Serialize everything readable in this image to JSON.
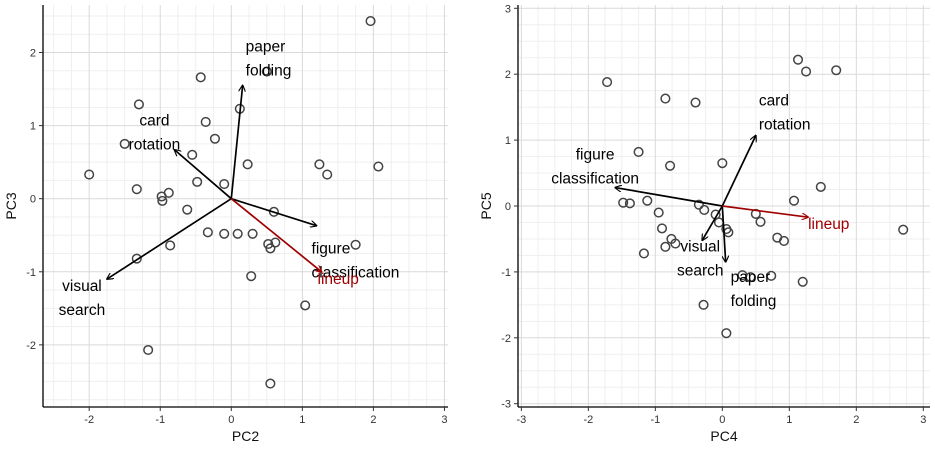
{
  "colors": {
    "background": "#ffffff",
    "grid_major": "#d9d9d9",
    "grid_minor": "#efefef",
    "point": "#444444",
    "arrow": "#000000",
    "highlight": "#a00000"
  },
  "chart_data": [
    {
      "type": "scatter",
      "subtype": "biplot",
      "xlabel": "PC2",
      "ylabel": "PC3",
      "xlim": [
        -2.65,
        3.05
      ],
      "ylim": [
        -2.85,
        2.65
      ],
      "xticks": [
        "-2",
        "-1",
        "0",
        "1",
        "2",
        "3"
      ],
      "yticks": [
        "-2",
        "-1",
        "0",
        "1",
        "2"
      ],
      "grid": true,
      "points": [
        [
          1.96,
          2.43
        ],
        [
          -0.43,
          1.66
        ],
        [
          0.5,
          1.74
        ],
        [
          -1.3,
          1.29
        ],
        [
          0.12,
          1.23
        ],
        [
          -0.36,
          1.05
        ],
        [
          -1.5,
          0.75
        ],
        [
          -0.23,
          0.82
        ],
        [
          -0.55,
          0.6
        ],
        [
          0.23,
          0.47
        ],
        [
          1.24,
          0.47
        ],
        [
          2.07,
          0.44
        ],
        [
          1.35,
          0.33
        ],
        [
          -2.0,
          0.33
        ],
        [
          -0.1,
          0.2
        ],
        [
          -0.48,
          0.23
        ],
        [
          -1.33,
          0.13
        ],
        [
          -0.88,
          0.08
        ],
        [
          -0.98,
          0.03
        ],
        [
          -0.97,
          -0.03
        ],
        [
          -0.62,
          -0.15
        ],
        [
          0.6,
          -0.18
        ],
        [
          -0.33,
          -0.46
        ],
        [
          -0.1,
          -0.48
        ],
        [
          0.09,
          -0.48
        ],
        [
          0.3,
          -0.48
        ],
        [
          0.52,
          -0.62
        ],
        [
          0.55,
          -0.68
        ],
        [
          0.62,
          -0.6
        ],
        [
          1.75,
          -0.63
        ],
        [
          -0.86,
          -0.64
        ],
        [
          -1.33,
          -0.82
        ],
        [
          0.28,
          -1.06
        ],
        [
          1.04,
          -1.46
        ],
        [
          -1.17,
          -2.07
        ],
        [
          0.55,
          -2.53
        ]
      ],
      "vectors": [
        {
          "label": "paper\nfolding",
          "x": 0.16,
          "y": 1.55,
          "highlight": false
        },
        {
          "label": "card\nrotation",
          "x": -0.8,
          "y": 0.67,
          "highlight": false
        },
        {
          "label": "figure\nclassification",
          "x": 1.2,
          "y": -0.37,
          "highlight": false
        },
        {
          "label": "visual\nsearch",
          "x": -1.75,
          "y": -1.1,
          "highlight": false
        },
        {
          "label": "lineup",
          "x": 1.27,
          "y": -1.0,
          "highlight": true
        }
      ]
    },
    {
      "type": "scatter",
      "subtype": "biplot",
      "xlabel": "PC4",
      "ylabel": "PC5",
      "xlim": [
        -3.05,
        3.1
      ],
      "ylim": [
        -3.05,
        3.05
      ],
      "xticks": [
        "-3",
        "-2",
        "-1",
        "0",
        "1",
        "2",
        "3"
      ],
      "yticks": [
        "-3",
        "-2",
        "-1",
        "0",
        "1",
        "2",
        "3"
      ],
      "grid": true,
      "points": [
        [
          1.13,
          2.22
        ],
        [
          1.25,
          2.04
        ],
        [
          1.7,
          2.06
        ],
        [
          -1.72,
          1.88
        ],
        [
          -0.85,
          1.63
        ],
        [
          -0.4,
          1.57
        ],
        [
          -1.25,
          0.82
        ],
        [
          -0.78,
          0.61
        ],
        [
          0.0,
          0.65
        ],
        [
          1.47,
          0.29
        ],
        [
          1.07,
          0.08
        ],
        [
          -1.48,
          0.05
        ],
        [
          -1.38,
          0.04
        ],
        [
          -1.12,
          0.08
        ],
        [
          -0.35,
          0.02
        ],
        [
          -0.27,
          -0.06
        ],
        [
          -0.1,
          -0.13
        ],
        [
          -0.95,
          -0.1
        ],
        [
          0.5,
          -0.12
        ],
        [
          0.57,
          -0.24
        ],
        [
          -0.05,
          -0.25
        ],
        [
          0.06,
          -0.35
        ],
        [
          0.09,
          -0.4
        ],
        [
          -0.9,
          -0.34
        ],
        [
          -0.76,
          -0.5
        ],
        [
          0.82,
          -0.48
        ],
        [
          0.92,
          -0.53
        ],
        [
          -0.7,
          -0.57
        ],
        [
          -0.85,
          -0.62
        ],
        [
          -1.17,
          -0.72
        ],
        [
          0.73,
          -1.06
        ],
        [
          0.42,
          -1.08
        ],
        [
          0.3,
          -1.05
        ],
        [
          1.2,
          -1.15
        ],
        [
          -0.28,
          -1.5
        ],
        [
          0.06,
          -1.93
        ],
        [
          2.7,
          -0.36
        ]
      ],
      "vectors": [
        {
          "label": "card\nrotation",
          "x": 0.5,
          "y": 1.07,
          "highlight": false
        },
        {
          "label": "figure\nclassification",
          "x": -1.6,
          "y": 0.28,
          "highlight": false
        },
        {
          "label": "visual\nsearch",
          "x": -0.3,
          "y": -0.52,
          "highlight": false
        },
        {
          "label": "paper\nfolding",
          "x": 0.05,
          "y": -0.85,
          "highlight": false
        },
        {
          "label": "lineup",
          "x": 1.28,
          "y": -0.17,
          "highlight": true
        }
      ]
    }
  ]
}
